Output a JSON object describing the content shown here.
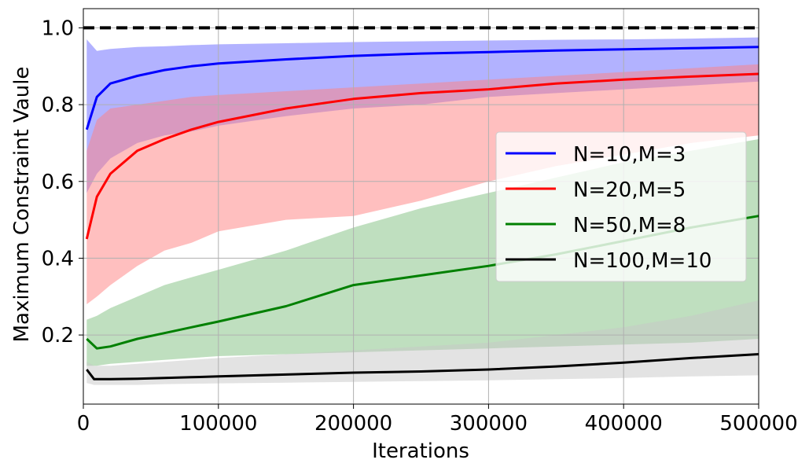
{
  "chart_data": {
    "type": "line",
    "title": "",
    "xlabel": "Iterations",
    "ylabel": "Maximum Constraint Vaule",
    "xlim": [
      0,
      500000
    ],
    "ylim": [
      0.02,
      1.05
    ],
    "xticks": [
      0,
      100000,
      200000,
      300000,
      400000,
      500000
    ],
    "xtick_labels": [
      "0",
      "100000",
      "200000",
      "300000",
      "400000",
      "500000"
    ],
    "yticks": [
      0.2,
      0.4,
      0.6,
      0.8,
      1.0
    ],
    "ytick_labels": [
      "0.2",
      "0.4",
      "0.6",
      "0.8",
      "1.0"
    ],
    "grid": true,
    "legend_position": "center-right",
    "reference_line": {
      "y": 1.0,
      "style": "dashed",
      "color": "#000000"
    },
    "series": [
      {
        "name": "N=10,M=3",
        "color": "#0000ff",
        "band_color": "#6666ff",
        "x": [
          2500,
          10000,
          20000,
          40000,
          60000,
          80000,
          100000,
          150000,
          200000,
          250000,
          300000,
          350000,
          400000,
          450000,
          500000
        ],
        "mean": [
          0.735,
          0.82,
          0.855,
          0.875,
          0.89,
          0.9,
          0.907,
          0.918,
          0.927,
          0.933,
          0.937,
          0.941,
          0.944,
          0.947,
          0.95
        ],
        "lower": [
          0.57,
          0.62,
          0.66,
          0.7,
          0.72,
          0.73,
          0.745,
          0.77,
          0.79,
          0.8,
          0.82,
          0.83,
          0.84,
          0.85,
          0.86
        ],
        "upper": [
          0.97,
          0.94,
          0.945,
          0.95,
          0.952,
          0.955,
          0.957,
          0.96,
          0.963,
          0.965,
          0.967,
          0.969,
          0.97,
          0.972,
          0.975
        ]
      },
      {
        "name": "N=20,M=5",
        "color": "#ff0000",
        "band_color": "#ff8080",
        "x": [
          2500,
          10000,
          20000,
          40000,
          60000,
          80000,
          100000,
          150000,
          200000,
          250000,
          300000,
          350000,
          400000,
          450000,
          500000
        ],
        "mean": [
          0.45,
          0.56,
          0.62,
          0.68,
          0.71,
          0.735,
          0.755,
          0.79,
          0.815,
          0.83,
          0.84,
          0.855,
          0.865,
          0.873,
          0.88
        ],
        "lower": [
          0.28,
          0.3,
          0.33,
          0.38,
          0.42,
          0.44,
          0.47,
          0.5,
          0.51,
          0.55,
          0.6,
          0.64,
          0.67,
          0.7,
          0.72
        ],
        "upper": [
          0.68,
          0.76,
          0.79,
          0.8,
          0.81,
          0.82,
          0.825,
          0.835,
          0.845,
          0.855,
          0.865,
          0.875,
          0.885,
          0.895,
          0.905
        ]
      },
      {
        "name": "N=50,M=8",
        "color": "#008000",
        "band_color": "#80c080",
        "x": [
          2500,
          10000,
          20000,
          40000,
          60000,
          80000,
          100000,
          150000,
          200000,
          250000,
          300000,
          350000,
          400000,
          450000,
          500000
        ],
        "mean": [
          0.19,
          0.165,
          0.17,
          0.19,
          0.205,
          0.22,
          0.235,
          0.275,
          0.33,
          0.355,
          0.38,
          0.41,
          0.445,
          0.48,
          0.51
        ],
        "lower": [
          0.12,
          0.12,
          0.125,
          0.13,
          0.135,
          0.14,
          0.145,
          0.15,
          0.155,
          0.16,
          0.165,
          0.17,
          0.175,
          0.18,
          0.19
        ],
        "upper": [
          0.24,
          0.25,
          0.27,
          0.3,
          0.33,
          0.35,
          0.37,
          0.42,
          0.48,
          0.53,
          0.57,
          0.61,
          0.65,
          0.68,
          0.71
        ]
      },
      {
        "name": "N=100,M=10",
        "color": "#000000",
        "band_color": "#c8c8c8",
        "x": [
          2500,
          8000,
          20000,
          40000,
          60000,
          80000,
          100000,
          150000,
          200000,
          250000,
          300000,
          350000,
          400000,
          450000,
          500000
        ],
        "mean": [
          0.11,
          0.085,
          0.085,
          0.086,
          0.088,
          0.09,
          0.092,
          0.097,
          0.102,
          0.105,
          0.11,
          0.118,
          0.128,
          0.14,
          0.15
        ],
        "lower": [
          0.075,
          0.07,
          0.07,
          0.07,
          0.072,
          0.073,
          0.074,
          0.076,
          0.078,
          0.08,
          0.082,
          0.085,
          0.088,
          0.092,
          0.095
        ],
        "upper": [
          0.13,
          0.12,
          0.12,
          0.125,
          0.13,
          0.135,
          0.14,
          0.15,
          0.16,
          0.17,
          0.18,
          0.2,
          0.22,
          0.25,
          0.29
        ]
      }
    ]
  }
}
